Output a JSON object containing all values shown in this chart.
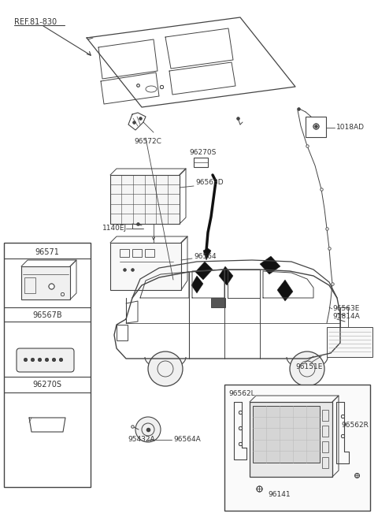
{
  "bg_color": "#ffffff",
  "lc": "#444444",
  "figsize": [
    4.8,
    6.56
  ],
  "dpi": 100,
  "labels": {
    "ref": "REF.81-830",
    "96572C": "96572C",
    "96270S_top": "96270S",
    "1018AD": "1018AD",
    "96563D": "96563D",
    "1140EJ": "1140EJ",
    "96564": "96564",
    "96571": "96571",
    "96567B": "96567B",
    "96270S": "96270S",
    "96563E": "96563E",
    "91814A": "91814A",
    "96151E": "96151E",
    "96562L": "96562L",
    "96562R": "96562R",
    "96141": "96141",
    "95432A": "95432A",
    "96564A": "96564A"
  }
}
